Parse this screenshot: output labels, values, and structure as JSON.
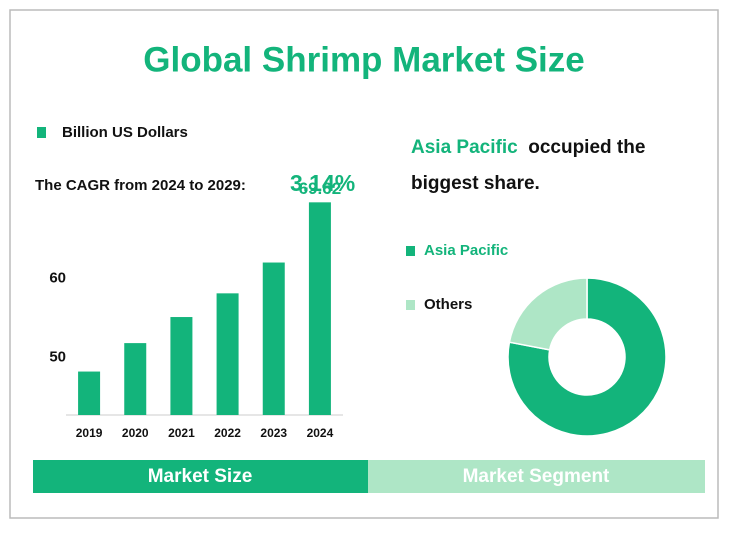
{
  "title": "Global  Shrimp Market Size",
  "cagr": {
    "label": "The CAGR from 2024 to 2029:",
    "value": "3.14%"
  },
  "highlight": {
    "region": "Asia Pacific",
    "text": "occupied the biggest share."
  },
  "tabs": [
    "Market Size",
    "Market Segment"
  ],
  "chart_data": [
    {
      "type": "bar",
      "categories": [
        "2019",
        "2020",
        "2021",
        "2022",
        "2023",
        "2024"
      ],
      "series": [
        {
          "name": "Billion US Dollars",
          "color": "#13b47b",
          "values": [
            48.2,
            51.8,
            55.1,
            58.1,
            62.0,
            69.62
          ]
        }
      ],
      "ylim": [
        42.7,
        72.5
      ],
      "yticks": [
        50,
        60
      ]
    },
    {
      "type": "pie",
      "categories": [
        "Asia Pacific",
        "Others"
      ],
      "values": [
        78,
        22
      ],
      "colors": [
        "#13b47b",
        "#aee6c6"
      ]
    }
  ]
}
